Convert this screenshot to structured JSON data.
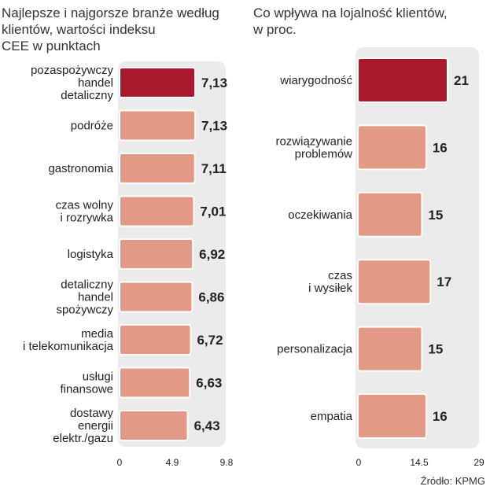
{
  "chart_data": [
    {
      "type": "bar",
      "orientation": "horizontal",
      "title": "Najlepsze i najgorsze branże według\nklientów, wartości indeksu\nCEE w punktach",
      "categories": [
        "pozaspożywczy\nhandel\ndetaliczny",
        "podróże",
        "gastronomia",
        "czas wolny\ni rozrywka",
        "logistyka",
        "detaliczny\nhandel\nspożywczy",
        "media\ni telekomunikacja",
        "usługi\nfinansowe",
        "dostawy\nenergii\nelektr./gazu"
      ],
      "values": [
        7.13,
        7.13,
        7.11,
        7.01,
        6.92,
        6.86,
        6.72,
        6.63,
        6.43
      ],
      "value_labels": [
        "7,13",
        "7,13",
        "7,11",
        "7,01",
        "6,92",
        "6,86",
        "6,72",
        "6,63",
        "6,43"
      ],
      "highlight_index": 0,
      "xlim": [
        0,
        9.8
      ],
      "ticks": [
        "0",
        "4.9",
        "9.8"
      ],
      "tick_values": [
        0,
        4.9,
        9.8
      ]
    },
    {
      "type": "bar",
      "orientation": "horizontal",
      "title": "Co wpływa na lojalność klientów,\nw proc.",
      "categories": [
        "wiarygodność",
        "rozwiązywanie\nproblemów",
        "oczekiwania",
        "czas\ni wysiłek",
        "personalizacja",
        "empatia"
      ],
      "values": [
        21,
        16,
        15,
        17,
        15,
        16
      ],
      "value_labels": [
        "21",
        "16",
        "15",
        "17",
        "15",
        "16"
      ],
      "highlight_index": 0,
      "xlim": [
        0,
        29
      ],
      "ticks": [
        "0",
        "14.5",
        "29"
      ],
      "tick_values": [
        0,
        14.5,
        29
      ]
    }
  ],
  "source": "Źródło: KPMG",
  "colors": {
    "highlight": "#a8192e",
    "bar": "#e29a86",
    "background": "#ebebeb",
    "text": "#222222"
  }
}
